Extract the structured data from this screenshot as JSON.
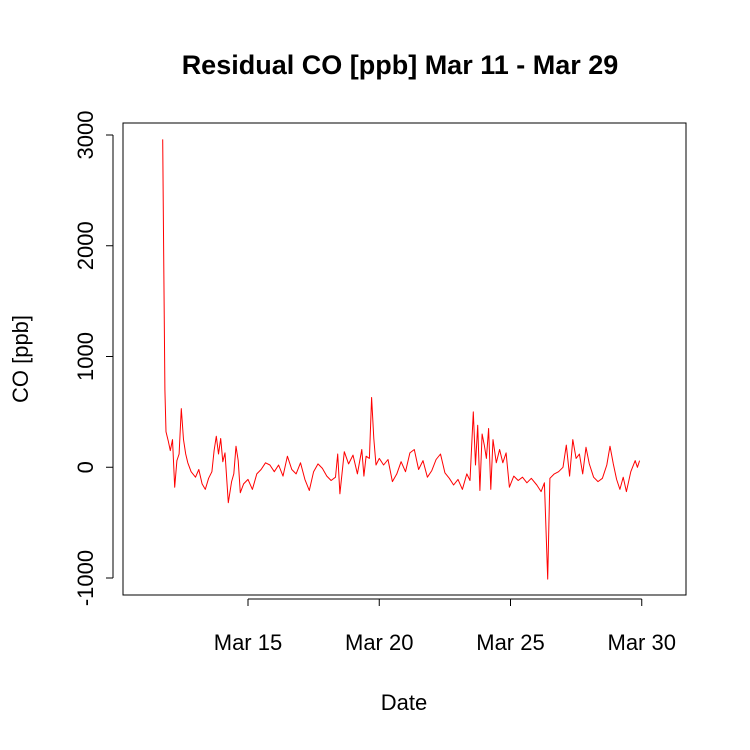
{
  "chart_data": {
    "type": "line",
    "title": "Residual CO [ppb] Mar 11 - Mar 29",
    "xlabel": "Date",
    "ylabel": "CO [ppb]",
    "xlim": [
      "2011-03-11",
      "2011-03-31"
    ],
    "ylim": [
      -1000,
      3000
    ],
    "x_ticks": [
      {
        "date": "2011-03-15",
        "label": "Mar 15"
      },
      {
        "date": "2011-03-20",
        "label": "Mar 20"
      },
      {
        "date": "2011-03-25",
        "label": "Mar 25"
      },
      {
        "date": "2011-03-30",
        "label": "Mar 30"
      }
    ],
    "y_ticks": [
      {
        "value": -1000,
        "label": "-1000"
      },
      {
        "value": 0,
        "label": "0"
      },
      {
        "value": 1000,
        "label": "1000"
      },
      {
        "value": 2000,
        "label": "2000"
      },
      {
        "value": 3000,
        "label": "3000"
      }
    ],
    "grid": false,
    "legend": "none",
    "series": [
      {
        "color": "#ff0000",
        "points": [
          [
            "2011-03-11 18:00",
            2960
          ],
          [
            "2011-03-11 19:00",
            1800
          ],
          [
            "2011-03-11 20:00",
            700
          ],
          [
            "2011-03-11 21:00",
            320
          ],
          [
            "2011-03-11 23:00",
            240
          ],
          [
            "2011-03-12 01:00",
            150
          ],
          [
            "2011-03-12 03:00",
            250
          ],
          [
            "2011-03-12 05:00",
            -180
          ],
          [
            "2011-03-12 07:00",
            60
          ],
          [
            "2011-03-12 09:00",
            120
          ],
          [
            "2011-03-12 11:00",
            530
          ],
          [
            "2011-03-12 13:00",
            250
          ],
          [
            "2011-03-12 15:00",
            120
          ],
          [
            "2011-03-12 17:00",
            40
          ],
          [
            "2011-03-12 20:00",
            -40
          ],
          [
            "2011-03-13 00:00",
            -90
          ],
          [
            "2011-03-13 03:00",
            -20
          ],
          [
            "2011-03-13 06:00",
            -150
          ],
          [
            "2011-03-13 09:00",
            -200
          ],
          [
            "2011-03-13 12:00",
            -100
          ],
          [
            "2011-03-13 15:00",
            -40
          ],
          [
            "2011-03-13 17:00",
            150
          ],
          [
            "2011-03-13 19:00",
            280
          ],
          [
            "2011-03-13 21:00",
            120
          ],
          [
            "2011-03-13 23:00",
            260
          ],
          [
            "2011-03-14 01:00",
            50
          ],
          [
            "2011-03-14 03:00",
            130
          ],
          [
            "2011-03-14 06:00",
            -320
          ],
          [
            "2011-03-14 09:00",
            -130
          ],
          [
            "2011-03-14 11:00",
            -60
          ],
          [
            "2011-03-14 13:00",
            190
          ],
          [
            "2011-03-14 15:00",
            60
          ],
          [
            "2011-03-14 17:00",
            -230
          ],
          [
            "2011-03-14 20:00",
            -150
          ],
          [
            "2011-03-15 00:00",
            -110
          ],
          [
            "2011-03-15 04:00",
            -200
          ],
          [
            "2011-03-15 08:00",
            -60
          ],
          [
            "2011-03-15 12:00",
            -20
          ],
          [
            "2011-03-15 16:00",
            40
          ],
          [
            "2011-03-15 20:00",
            20
          ],
          [
            "2011-03-16 00:00",
            -40
          ],
          [
            "2011-03-16 04:00",
            20
          ],
          [
            "2011-03-16 08:00",
            -80
          ],
          [
            "2011-03-16 12:00",
            100
          ],
          [
            "2011-03-16 16:00",
            -20
          ],
          [
            "2011-03-16 20:00",
            -60
          ],
          [
            "2011-03-17 00:00",
            40
          ],
          [
            "2011-03-17 04:00",
            -110
          ],
          [
            "2011-03-17 08:00",
            -210
          ],
          [
            "2011-03-17 12:00",
            -40
          ],
          [
            "2011-03-17 16:00",
            30
          ],
          [
            "2011-03-17 20:00",
            -10
          ],
          [
            "2011-03-18 00:00",
            -80
          ],
          [
            "2011-03-18 04:00",
            -120
          ],
          [
            "2011-03-18 08:00",
            -90
          ],
          [
            "2011-03-18 10:00",
            120
          ],
          [
            "2011-03-18 12:00",
            -240
          ],
          [
            "2011-03-18 16:00",
            140
          ],
          [
            "2011-03-18 20:00",
            30
          ],
          [
            "2011-03-19 00:00",
            110
          ],
          [
            "2011-03-19 04:00",
            -60
          ],
          [
            "2011-03-19 08:00",
            160
          ],
          [
            "2011-03-19 10:00",
            -80
          ],
          [
            "2011-03-19 12:00",
            100
          ],
          [
            "2011-03-19 15:00",
            80
          ],
          [
            "2011-03-19 17:00",
            630
          ],
          [
            "2011-03-19 19:00",
            260
          ],
          [
            "2011-03-19 21:00",
            20
          ],
          [
            "2011-03-20 00:00",
            80
          ],
          [
            "2011-03-20 04:00",
            20
          ],
          [
            "2011-03-20 08:00",
            70
          ],
          [
            "2011-03-20 12:00",
            -130
          ],
          [
            "2011-03-20 16:00",
            -60
          ],
          [
            "2011-03-20 20:00",
            50
          ],
          [
            "2011-03-21 00:00",
            -40
          ],
          [
            "2011-03-21 04:00",
            130
          ],
          [
            "2011-03-21 08:00",
            160
          ],
          [
            "2011-03-21 12:00",
            -20
          ],
          [
            "2011-03-21 16:00",
            60
          ],
          [
            "2011-03-21 20:00",
            -90
          ],
          [
            "2011-03-22 00:00",
            -30
          ],
          [
            "2011-03-22 04:00",
            70
          ],
          [
            "2011-03-22 08:00",
            120
          ],
          [
            "2011-03-22 12:00",
            -50
          ],
          [
            "2011-03-22 16:00",
            -100
          ],
          [
            "2011-03-22 20:00",
            -160
          ],
          [
            "2011-03-23 00:00",
            -110
          ],
          [
            "2011-03-23 04:00",
            -200
          ],
          [
            "2011-03-23 08:00",
            -60
          ],
          [
            "2011-03-23 11:00",
            -120
          ],
          [
            "2011-03-23 14:00",
            500
          ],
          [
            "2011-03-23 16:00",
            20
          ],
          [
            "2011-03-23 18:00",
            380
          ],
          [
            "2011-03-23 20:00",
            -210
          ],
          [
            "2011-03-23 22:00",
            300
          ],
          [
            "2011-03-24 00:00",
            200
          ],
          [
            "2011-03-24 02:00",
            80
          ],
          [
            "2011-03-24 04:00",
            350
          ],
          [
            "2011-03-24 06:00",
            -200
          ],
          [
            "2011-03-24 08:00",
            250
          ],
          [
            "2011-03-24 11:00",
            40
          ],
          [
            "2011-03-24 14:00",
            160
          ],
          [
            "2011-03-24 17:00",
            40
          ],
          [
            "2011-03-24 20:00",
            130
          ],
          [
            "2011-03-24 23:00",
            -180
          ],
          [
            "2011-03-25 03:00",
            -80
          ],
          [
            "2011-03-25 07:00",
            -120
          ],
          [
            "2011-03-25 11:00",
            -90
          ],
          [
            "2011-03-25 15:00",
            -140
          ],
          [
            "2011-03-25 19:00",
            -100
          ],
          [
            "2011-03-26 00:00",
            -160
          ],
          [
            "2011-03-26 04:00",
            -220
          ],
          [
            "2011-03-26 07:00",
            -140
          ],
          [
            "2011-03-26 10:00",
            -1010
          ],
          [
            "2011-03-26 12:00",
            -100
          ],
          [
            "2011-03-26 16:00",
            -60
          ],
          [
            "2011-03-26 20:00",
            -40
          ],
          [
            "2011-03-27 00:00",
            0
          ],
          [
            "2011-03-27 03:00",
            200
          ],
          [
            "2011-03-27 06:00",
            -80
          ],
          [
            "2011-03-27 09:00",
            250
          ],
          [
            "2011-03-27 12:00",
            80
          ],
          [
            "2011-03-27 15:00",
            120
          ],
          [
            "2011-03-27 18:00",
            -60
          ],
          [
            "2011-03-27 21:00",
            180
          ],
          [
            "2011-03-28 00:00",
            30
          ],
          [
            "2011-03-28 04:00",
            -90
          ],
          [
            "2011-03-28 08:00",
            -130
          ],
          [
            "2011-03-28 12:00",
            -100
          ],
          [
            "2011-03-28 16:00",
            20
          ],
          [
            "2011-03-28 19:00",
            190
          ],
          [
            "2011-03-28 22:00",
            30
          ],
          [
            "2011-03-29 01:00",
            -110
          ],
          [
            "2011-03-29 04:00",
            -200
          ],
          [
            "2011-03-29 07:00",
            -90
          ],
          [
            "2011-03-29 10:00",
            -220
          ],
          [
            "2011-03-29 14:00",
            -40
          ],
          [
            "2011-03-29 18:00",
            60
          ],
          [
            "2011-03-29 20:00",
            0
          ],
          [
            "2011-03-29 22:00",
            60
          ]
        ]
      }
    ]
  }
}
